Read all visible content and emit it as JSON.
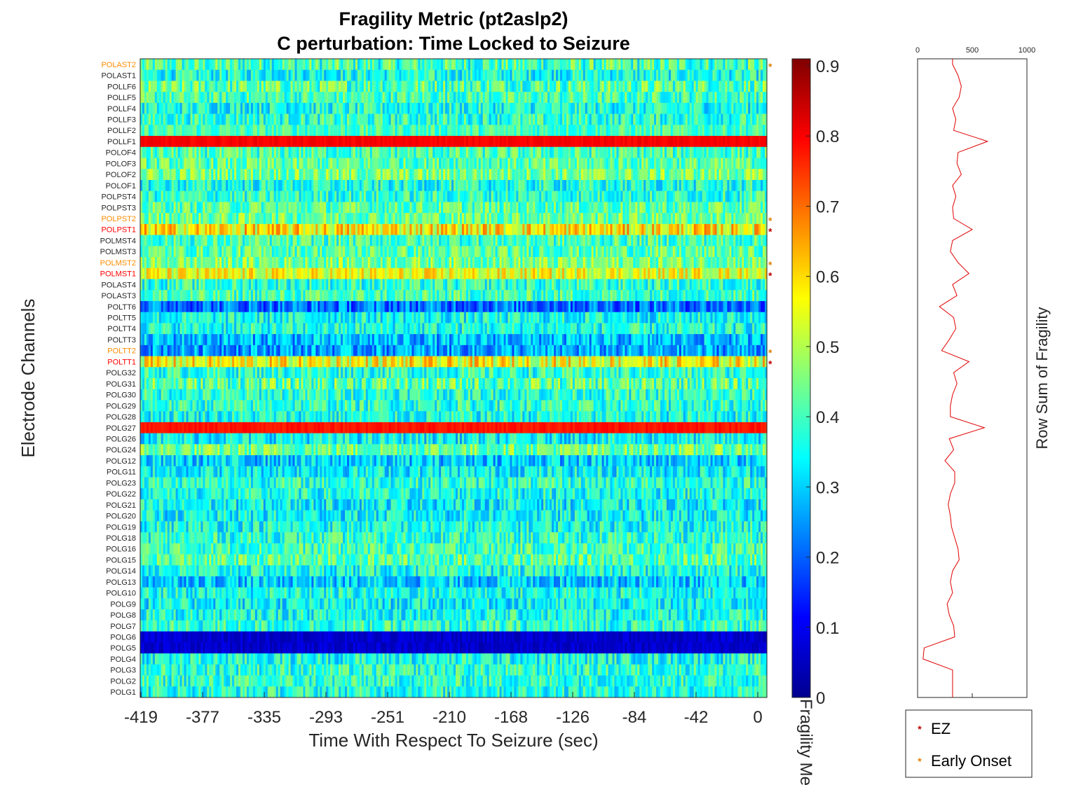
{
  "chart_data": [
    {
      "type": "heatmap",
      "title": "Fragility Metric (pt2aslp2)",
      "subtitle": "C perturbation:  Time Locked to Seizure",
      "xlabel": "Time With Respect To Seizure (sec)",
      "ylabel": "Electrode Channels",
      "xticks": [
        "-419",
        "-377",
        "-335",
        "-293",
        "-251",
        "-210",
        "-168",
        "-126",
        "-84",
        "-42",
        "0"
      ],
      "xlim": [
        -419,
        0
      ],
      "colorbar": {
        "label": "Fragility Metric",
        "colormap": "jet",
        "ticks": [
          "0",
          "0.1",
          "0.2",
          "0.3",
          "0.4",
          "0.5",
          "0.6",
          "0.7",
          "0.8",
          "0.9"
        ],
        "range": [
          0,
          0.91
        ]
      },
      "channels": [
        {
          "name": "POLAST2",
          "mean": 0.4,
          "var": 0.12,
          "marker": "early"
        },
        {
          "name": "POLAST1",
          "mean": 0.36,
          "var": 0.1,
          "marker": ""
        },
        {
          "name": "POLLF6",
          "mean": 0.42,
          "var": 0.12,
          "marker": ""
        },
        {
          "name": "POLLF5",
          "mean": 0.4,
          "var": 0.1,
          "marker": ""
        },
        {
          "name": "POLLF4",
          "mean": 0.36,
          "var": 0.1,
          "marker": ""
        },
        {
          "name": "POLLF3",
          "mean": 0.38,
          "var": 0.1,
          "marker": ""
        },
        {
          "name": "POLLF2",
          "mean": 0.4,
          "var": 0.08,
          "marker": ""
        },
        {
          "name": "POLLF1",
          "mean": 0.8,
          "var": 0.015,
          "marker": ""
        },
        {
          "name": "POLOF4",
          "mean": 0.4,
          "var": 0.1,
          "marker": ""
        },
        {
          "name": "POLOF3",
          "mean": 0.42,
          "var": 0.1,
          "marker": ""
        },
        {
          "name": "POLOF2",
          "mean": 0.45,
          "var": 0.1,
          "marker": ""
        },
        {
          "name": "POLOF1",
          "mean": 0.36,
          "var": 0.1,
          "marker": ""
        },
        {
          "name": "POLPST4",
          "mean": 0.38,
          "var": 0.1,
          "marker": ""
        },
        {
          "name": "POLPST3",
          "mean": 0.42,
          "var": 0.1,
          "marker": ""
        },
        {
          "name": "POLPST2",
          "mean": 0.44,
          "var": 0.1,
          "marker": "early"
        },
        {
          "name": "POLPST1",
          "mean": 0.58,
          "var": 0.12,
          "marker": "ez"
        },
        {
          "name": "POLMST4",
          "mean": 0.4,
          "var": 0.1,
          "marker": ""
        },
        {
          "name": "POLMST3",
          "mean": 0.42,
          "var": 0.1,
          "marker": ""
        },
        {
          "name": "POLMST2",
          "mean": 0.45,
          "var": 0.1,
          "marker": "early"
        },
        {
          "name": "POLMST1",
          "mean": 0.55,
          "var": 0.1,
          "marker": "ez"
        },
        {
          "name": "POLAST4",
          "mean": 0.38,
          "var": 0.1,
          "marker": ""
        },
        {
          "name": "POLAST3",
          "mean": 0.4,
          "var": 0.1,
          "marker": ""
        },
        {
          "name": "POLTT6",
          "mean": 0.22,
          "var": 0.1,
          "marker": ""
        },
        {
          "name": "POLTT5",
          "mean": 0.35,
          "var": 0.1,
          "marker": ""
        },
        {
          "name": "POLTT4",
          "mean": 0.36,
          "var": 0.1,
          "marker": ""
        },
        {
          "name": "POLTT3",
          "mean": 0.28,
          "var": 0.1,
          "marker": ""
        },
        {
          "name": "POLTT2",
          "mean": 0.26,
          "var": 0.1,
          "marker": "early"
        },
        {
          "name": "POLTT1",
          "mean": 0.56,
          "var": 0.12,
          "marker": "ez"
        },
        {
          "name": "POLG32",
          "mean": 0.38,
          "var": 0.1,
          "marker": ""
        },
        {
          "name": "POLG31",
          "mean": 0.42,
          "var": 0.12,
          "marker": ""
        },
        {
          "name": "POLG30",
          "mean": 0.38,
          "var": 0.1,
          "marker": ""
        },
        {
          "name": "POLG29",
          "mean": 0.38,
          "var": 0.1,
          "marker": ""
        },
        {
          "name": "POLG28",
          "mean": 0.36,
          "var": 0.1,
          "marker": ""
        },
        {
          "name": "POLG27",
          "mean": 0.78,
          "var": 0.02,
          "marker": ""
        },
        {
          "name": "POLG26",
          "mean": 0.34,
          "var": 0.1,
          "marker": ""
        },
        {
          "name": "POLG24",
          "mean": 0.44,
          "var": 0.1,
          "marker": ""
        },
        {
          "name": "POLG12",
          "mean": 0.3,
          "var": 0.1,
          "marker": ""
        },
        {
          "name": "POLG11",
          "mean": 0.34,
          "var": 0.1,
          "marker": ""
        },
        {
          "name": "POLG23",
          "mean": 0.38,
          "var": 0.1,
          "marker": ""
        },
        {
          "name": "POLG22",
          "mean": 0.36,
          "var": 0.1,
          "marker": ""
        },
        {
          "name": "POLG21",
          "mean": 0.34,
          "var": 0.1,
          "marker": ""
        },
        {
          "name": "POLG20",
          "mean": 0.34,
          "var": 0.1,
          "marker": ""
        },
        {
          "name": "POLG19",
          "mean": 0.36,
          "var": 0.1,
          "marker": ""
        },
        {
          "name": "POLG18",
          "mean": 0.38,
          "var": 0.1,
          "marker": ""
        },
        {
          "name": "POLG16",
          "mean": 0.4,
          "var": 0.1,
          "marker": ""
        },
        {
          "name": "POLG15",
          "mean": 0.42,
          "var": 0.1,
          "marker": ""
        },
        {
          "name": "POLG14",
          "mean": 0.36,
          "var": 0.1,
          "marker": ""
        },
        {
          "name": "POLG13",
          "mean": 0.3,
          "var": 0.1,
          "marker": ""
        },
        {
          "name": "POLG10",
          "mean": 0.36,
          "var": 0.1,
          "marker": ""
        },
        {
          "name": "POLG9",
          "mean": 0.34,
          "var": 0.1,
          "marker": ""
        },
        {
          "name": "POLG8",
          "mean": 0.36,
          "var": 0.1,
          "marker": ""
        },
        {
          "name": "POLG7",
          "mean": 0.38,
          "var": 0.1,
          "marker": ""
        },
        {
          "name": "POLG6",
          "mean": 0.07,
          "var": 0.03,
          "marker": ""
        },
        {
          "name": "POLG5",
          "mean": 0.07,
          "var": 0.03,
          "marker": ""
        },
        {
          "name": "POLG4",
          "mean": 0.36,
          "var": 0.1,
          "marker": ""
        },
        {
          "name": "POLG3",
          "mean": 0.38,
          "var": 0.1,
          "marker": ""
        },
        {
          "name": "POLG2",
          "mean": 0.38,
          "var": 0.1,
          "marker": ""
        },
        {
          "name": "POLG1",
          "mean": 0.37,
          "var": 0.1,
          "marker": ""
        }
      ]
    },
    {
      "type": "line",
      "ylabel": "Row Sum of Fragility",
      "xticks": [
        "0",
        "500",
        "1000"
      ],
      "xlim": [
        0,
        1000
      ],
      "line_color": "#e00000",
      "values": [
        320,
        370,
        400,
        380,
        320,
        350,
        330,
        640,
        370,
        360,
        400,
        320,
        350,
        320,
        330,
        500,
        320,
        300,
        370,
        470,
        320,
        360,
        200,
        330,
        350,
        290,
        220,
        470,
        330,
        360,
        320,
        300,
        300,
        610,
        290,
        330,
        250,
        340,
        340,
        300,
        280,
        300,
        310,
        340,
        370,
        380,
        320,
        300,
        320,
        270,
        290,
        330,
        340,
        60,
        50,
        320,
        320,
        320
      ]
    }
  ],
  "legend": {
    "items": [
      {
        "label": "EZ",
        "color": "#c00000"
      },
      {
        "label": "Early Onset",
        "color": "#e08000"
      }
    ]
  },
  "label_colors": {
    "ez": "#ff0000",
    "early": "#ff8c00",
    "normal": "#262626"
  }
}
